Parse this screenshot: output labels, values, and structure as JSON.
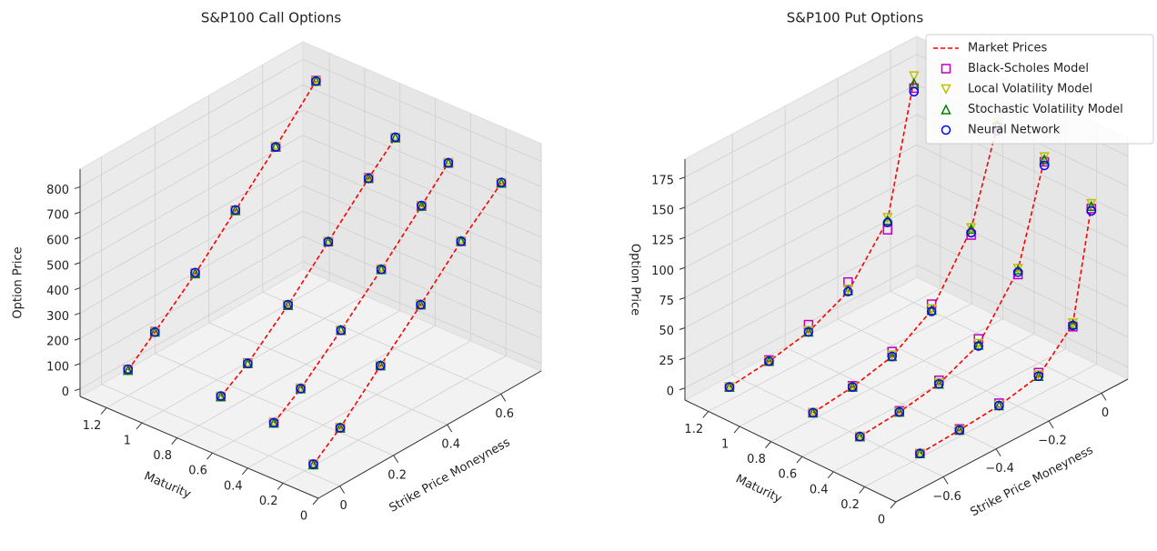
{
  "chart_data": [
    {
      "type": "scatter3d",
      "title": "S&P100 Call Options",
      "xlabel": "Strike Price Moneyness",
      "ylabel": "Maturity",
      "zlabel": "Option Price",
      "xlim": [
        -0.08,
        0.75
      ],
      "ylim": [
        0,
        1.35
      ],
      "zlim": [
        -30,
        870
      ],
      "xticks": [
        0.0,
        0.2,
        0.4,
        0.6
      ],
      "yticks": [
        0.0,
        0.2,
        0.4,
        0.6,
        0.8,
        1.0,
        1.2
      ],
      "zticks": [
        0,
        100,
        200,
        300,
        400,
        500,
        600,
        700,
        800
      ],
      "series": [
        {
          "color": "#ff0000",
          "marker": "line"
        },
        {
          "color": "#bf00bf",
          "marker": "square"
        },
        {
          "color": "#bfbf00",
          "marker": "tri-down"
        },
        {
          "color": "#008000",
          "marker": "tri-up"
        },
        {
          "color": "#0000ff",
          "marker": "circle"
        }
      ],
      "slices": [
        {
          "maturity": 1.2,
          "x": [
            0,
            0.1,
            0.25,
            0.4,
            0.55,
            0.7
          ],
          "values": [
            [
              70,
              160,
              300,
              460,
              620,
              790
            ],
            [
              72,
              162,
              302,
              460,
              620,
              792
            ],
            [
              70,
              160,
              300,
              458,
              620,
              790
            ],
            [
              70,
              161,
              301,
              460,
              621,
              790
            ],
            [
              74,
              160,
              305,
              462,
              620,
              790
            ]
          ]
        },
        {
          "maturity": 0.75,
          "x": [
            0.05,
            0.15,
            0.3,
            0.45,
            0.6,
            0.7
          ],
          "values": [
            [
              70,
              140,
              280,
              440,
              600,
              700
            ],
            [
              70,
              142,
              280,
              440,
              602,
              700
            ],
            [
              70,
              140,
              281,
              440,
              600,
              700
            ],
            [
              70,
              140,
              280,
              441,
              600,
              700
            ],
            [
              72,
              140,
              282,
              440,
              600,
              702
            ]
          ]
        },
        {
          "maturity": 0.45,
          "x": [
            0.05,
            0.15,
            0.3,
            0.45,
            0.6,
            0.7
          ],
          "values": [
            [
              55,
              130,
              270,
              420,
              580,
              690
            ],
            [
              56,
              131,
              270,
              420,
              580,
              690
            ],
            [
              55,
              130,
              270,
              421,
              580,
              690
            ],
            [
              55,
              130,
              271,
              420,
              580,
              690
            ],
            [
              56,
              130,
              270,
              420,
              582,
              690
            ]
          ]
        },
        {
          "maturity": 0.15,
          "x": [
            0,
            0.1,
            0.25,
            0.4,
            0.55,
            0.7
          ],
          "values": [
            [
              10,
              95,
              250,
              400,
              560,
              700
            ],
            [
              11,
              95,
              250,
              401,
              560,
              700
            ],
            [
              10,
              96,
              250,
              400,
              560,
              700
            ],
            [
              10,
              95,
              251,
              400,
              561,
              700
            ],
            [
              12,
              95,
              250,
              400,
              560,
              702
            ]
          ]
        }
      ]
    },
    {
      "type": "scatter3d",
      "title": "S&P100 Put Options",
      "xlabel": "Strike Price Moneyness",
      "ylabel": "Maturity",
      "zlabel": "Option Price",
      "xlim": [
        -0.78,
        0.1
      ],
      "ylim": [
        0,
        1.35
      ],
      "zlim": [
        -10,
        190
      ],
      "xticks": [
        {
          "value": -0.6,
          "label": "−0.6"
        },
        {
          "value": -0.4,
          "label": "−0.4"
        },
        {
          "value": -0.2,
          "label": "−0.2"
        },
        0.0
      ],
      "yticks": [
        0.0,
        0.2,
        0.4,
        0.6,
        0.8,
        1.0,
        1.2
      ],
      "zticks": [
        0,
        25,
        50,
        75,
        100,
        125,
        150,
        175
      ],
      "legend": "upper right",
      "series": [
        {
          "name": "Market Prices",
          "color": "#ff0000",
          "marker": "line"
        },
        {
          "name": "Black-Scholes Model",
          "color": "#bf00bf",
          "marker": "square"
        },
        {
          "name": "Local Volatility Model",
          "color": "#bfbf00",
          "marker": "tri-down"
        },
        {
          "name": "Stochastic Volatility Model",
          "color": "#008000",
          "marker": "tri-up"
        },
        {
          "name": "Neural Network",
          "color": "#0000ff",
          "marker": "circle"
        }
      ],
      "slices": [
        {
          "maturity": 1.2,
          "x": [
            -0.7,
            -0.55,
            -0.4,
            -0.25,
            -0.1,
            0.0
          ],
          "values": [
            [
              1,
              5,
              12,
              28,
              70,
              175
            ],
            [
              1,
              6,
              18,
              36,
              62,
              168
            ],
            [
              1,
              5,
              13,
              30,
              72,
              178
            ],
            [
              1,
              5,
              12,
              29,
              70,
              172
            ],
            [
              1,
              5,
              12,
              28,
              68,
              165
            ]
          ]
        },
        {
          "maturity": 0.75,
          "x": [
            -0.65,
            -0.5,
            -0.35,
            -0.2,
            -0.05,
            0.05
          ],
          "values": [
            [
              2,
              6,
              14,
              35,
              85,
              160
            ],
            [
              2,
              7,
              18,
              40,
              80,
              158
            ],
            [
              2,
              6,
              15,
              36,
              86,
              162
            ],
            [
              2,
              6,
              14,
              35,
              85,
              160
            ],
            [
              2,
              6,
              14,
              34,
              82,
              155
            ]
          ]
        },
        {
          "maturity": 0.45,
          "x": [
            -0.65,
            -0.5,
            -0.35,
            -0.2,
            -0.05,
            0.05
          ],
          "values": [
            [
              1,
              4,
              10,
              25,
              70,
              150
            ],
            [
              1,
              5,
              13,
              30,
              66,
              148
            ],
            [
              1,
              4,
              11,
              26,
              71,
              152
            ],
            [
              1,
              4,
              10,
              25,
              70,
              150
            ],
            [
              1,
              4,
              10,
              24,
              68,
              145
            ]
          ]
        },
        {
          "maturity": 0.15,
          "x": [
            -0.6,
            -0.45,
            -0.3,
            -0.15,
            -0.02,
            0.05
          ],
          "values": [
            [
              0,
              2,
              5,
              12,
              40,
              130
            ],
            [
              0,
              3,
              7,
              15,
              38,
              128
            ],
            [
              0,
              2,
              5,
              13,
              41,
              132
            ],
            [
              0,
              2,
              5,
              12,
              40,
              130
            ],
            [
              0,
              2,
              5,
              12,
              39,
              126
            ]
          ]
        }
      ]
    }
  ]
}
